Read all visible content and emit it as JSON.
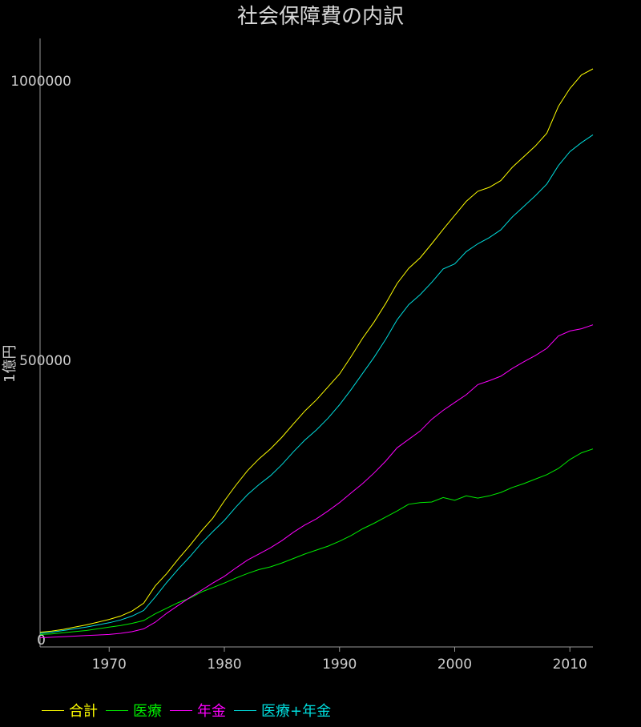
{
  "chart_data": {
    "type": "line",
    "title": "社会保障費の内訳",
    "ylabel": "1億円",
    "xlim": [
      1964,
      2012
    ],
    "ylim": [
      0,
      1000000
    ],
    "x_ticks": [
      "1970",
      "1980",
      "1990",
      "2000",
      "2010"
    ],
    "y_ticks": [
      "0",
      "500000",
      "1000000"
    ],
    "x": [
      1964,
      1965,
      1966,
      1967,
      1968,
      1969,
      1970,
      1971,
      1972,
      1973,
      1974,
      1975,
      1976,
      1977,
      1978,
      1979,
      1980,
      1981,
      1982,
      1983,
      1984,
      1985,
      1986,
      1987,
      1988,
      1989,
      1990,
      1991,
      1992,
      1993,
      1994,
      1995,
      1996,
      1997,
      1998,
      1999,
      2000,
      2001,
      2002,
      2003,
      2004,
      2005,
      2006,
      2007,
      2008,
      2009,
      2010,
      2011,
      2012
    ],
    "series": [
      {
        "name": "合計",
        "color": "#ffff00",
        "values": [
          12000,
          14000,
          17000,
          21000,
          25000,
          30000,
          35000,
          41000,
          50000,
          64000,
          95000,
          117000,
          143000,
          167000,
          193000,
          216000,
          247000,
          275000,
          301000,
          322000,
          340000,
          361000,
          385000,
          408000,
          428000,
          451000,
          474000,
          505000,
          538000,
          567000,
          600000,
          636000,
          663000,
          682000,
          707000,
          733000,
          758000,
          783000,
          801000,
          808000,
          820000,
          844000,
          863000,
          882000,
          905000,
          953000,
          985000,
          1009000,
          1020000
        ]
      },
      {
        "name": "医療",
        "color": "#00ee00",
        "values": [
          8000,
          9000,
          11000,
          13000,
          15000,
          18000,
          21000,
          24000,
          28000,
          33000,
          45000,
          55000,
          65000,
          73000,
          84000,
          92000,
          100000,
          109000,
          117000,
          124000,
          129000,
          136000,
          144000,
          152000,
          159000,
          166000,
          175000,
          185000,
          197000,
          207000,
          218000,
          229000,
          241000,
          244000,
          245000,
          253000,
          248000,
          256000,
          252000,
          256000,
          262000,
          271000,
          278000,
          286000,
          294000,
          305000,
          321000,
          333000,
          340000
        ]
      },
      {
        "name": "年金",
        "color": "#ff00ff",
        "values": [
          2000,
          3000,
          4000,
          5000,
          6000,
          7000,
          8000,
          10000,
          13000,
          18000,
          30000,
          46000,
          60000,
          74000,
          87000,
          100000,
          112000,
          127000,
          141000,
          152000,
          163000,
          176000,
          191000,
          204000,
          215000,
          229000,
          244000,
          261000,
          278000,
          297000,
          318000,
          342000,
          357000,
          372000,
          393000,
          409000,
          423000,
          437000,
          455000,
          462000,
          470000,
          484000,
          496000,
          507000,
          520000,
          542000,
          551000,
          555000,
          562000
        ]
      },
      {
        "name": "医療+年金",
        "color": "#00dddd",
        "values": [
          10000,
          12000,
          15000,
          18000,
          21000,
          25000,
          29000,
          34000,
          41000,
          51000,
          75000,
          101000,
          125000,
          147000,
          171000,
          192000,
          212000,
          236000,
          258000,
          276000,
          292000,
          312000,
          335000,
          356000,
          374000,
          395000,
          419000,
          446000,
          475000,
          504000,
          536000,
          571000,
          598000,
          616000,
          638000,
          662000,
          671000,
          693000,
          707000,
          718000,
          732000,
          755000,
          774000,
          793000,
          814000,
          847000,
          872000,
          888000,
          902000
        ]
      }
    ]
  }
}
